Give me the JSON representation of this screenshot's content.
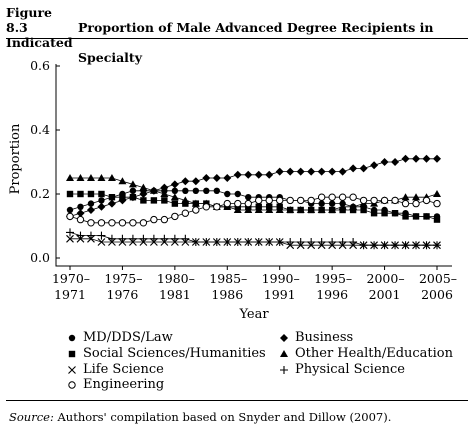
{
  "figure_label": "Figure 8.3",
  "title_line1": "Proportion of Male Advanced Degree Recipients in Indicated",
  "title_line2": "Specialty",
  "source_label": "Source:",
  "source_text": "Authors' compilation based on Snyder and Dillow (2007).",
  "chart_data": {
    "type": "line",
    "xlabel": "Year",
    "ylabel": "Proportion",
    "ylim": [
      0,
      0.6
    ],
    "yticks": [
      "0.0",
      "0.2",
      "0.4",
      "0.6"
    ],
    "xtick_labels": [
      [
        "1970–",
        "1971"
      ],
      [
        "1975–",
        "1976"
      ],
      [
        "1980–",
        "1981"
      ],
      [
        "1985–",
        "1986"
      ],
      [
        "1990–",
        "1991"
      ],
      [
        "1995–",
        "1996"
      ],
      [
        "2000–",
        "2001"
      ],
      [
        "2005–",
        "2006"
      ]
    ],
    "categories": [
      "1970–1971",
      "1971–1972",
      "1972–1973",
      "1973–1974",
      "1974–1975",
      "1975–1976",
      "1976–1977",
      "1977–1978",
      "1978–1979",
      "1979–1980",
      "1980–1981",
      "1981–1982",
      "1982–1983",
      "1983–1984",
      "1984–1985",
      "1985–1986",
      "1986–1987",
      "1987–1988",
      "1988–1989",
      "1989–1990",
      "1990–1991",
      "1991–1992",
      "1992–1993",
      "1993–1994",
      "1994–1995",
      "1995–1996",
      "1996–1997",
      "1997–1998",
      "1998–1999",
      "1999–2000",
      "2000–2001",
      "2001–2002",
      "2002–2003",
      "2003–2004",
      "2004–2005",
      "2005–2006"
    ],
    "series": [
      {
        "name": "MD/DDS/Law",
        "marker": "circle-filled",
        "values": [
          0.15,
          0.16,
          0.17,
          0.18,
          0.19,
          0.2,
          0.21,
          0.21,
          0.21,
          0.21,
          0.21,
          0.21,
          0.21,
          0.21,
          0.21,
          0.2,
          0.2,
          0.19,
          0.19,
          0.19,
          0.19,
          0.18,
          0.18,
          0.17,
          0.17,
          0.17,
          0.17,
          0.16,
          0.16,
          0.15,
          0.15,
          0.14,
          0.14,
          0.13,
          0.13,
          0.13
        ]
      },
      {
        "name": "Business",
        "marker": "diamond-filled",
        "values": [
          0.13,
          0.14,
          0.15,
          0.16,
          0.17,
          0.18,
          0.19,
          0.2,
          0.21,
          0.22,
          0.23,
          0.24,
          0.24,
          0.25,
          0.25,
          0.25,
          0.26,
          0.26,
          0.26,
          0.26,
          0.27,
          0.27,
          0.27,
          0.27,
          0.27,
          0.27,
          0.27,
          0.28,
          0.28,
          0.29,
          0.3,
          0.3,
          0.31,
          0.31,
          0.31,
          0.31
        ]
      },
      {
        "name": "Social Sciences/Humanities",
        "marker": "square-filled",
        "values": [
          0.2,
          0.2,
          0.2,
          0.2,
          0.19,
          0.19,
          0.19,
          0.18,
          0.18,
          0.18,
          0.17,
          0.17,
          0.17,
          0.17,
          0.16,
          0.16,
          0.16,
          0.16,
          0.16,
          0.16,
          0.16,
          0.15,
          0.15,
          0.15,
          0.15,
          0.15,
          0.15,
          0.15,
          0.15,
          0.14,
          0.14,
          0.14,
          0.13,
          0.13,
          0.13,
          0.12
        ]
      },
      {
        "name": "Other Health/Education",
        "marker": "triangle-filled",
        "values": [
          0.25,
          0.25,
          0.25,
          0.25,
          0.25,
          0.24,
          0.23,
          0.22,
          0.21,
          0.2,
          0.19,
          0.18,
          0.17,
          0.17,
          0.16,
          0.16,
          0.15,
          0.15,
          0.15,
          0.15,
          0.15,
          0.15,
          0.15,
          0.15,
          0.15,
          0.15,
          0.16,
          0.16,
          0.17,
          0.17,
          0.18,
          0.18,
          0.19,
          0.19,
          0.19,
          0.2
        ]
      },
      {
        "name": "Life Science",
        "marker": "x",
        "values": [
          0.06,
          0.06,
          0.06,
          0.05,
          0.05,
          0.05,
          0.05,
          0.05,
          0.05,
          0.05,
          0.05,
          0.05,
          0.05,
          0.05,
          0.05,
          0.05,
          0.05,
          0.05,
          0.05,
          0.05,
          0.05,
          0.04,
          0.04,
          0.04,
          0.04,
          0.04,
          0.04,
          0.04,
          0.04,
          0.04,
          0.04,
          0.04,
          0.04,
          0.04,
          0.04,
          0.04
        ]
      },
      {
        "name": "Physical Science",
        "marker": "plus",
        "values": [
          0.08,
          0.07,
          0.07,
          0.07,
          0.06,
          0.06,
          0.06,
          0.06,
          0.06,
          0.06,
          0.06,
          0.06,
          0.05,
          0.05,
          0.05,
          0.05,
          0.05,
          0.05,
          0.05,
          0.05,
          0.05,
          0.05,
          0.05,
          0.05,
          0.05,
          0.05,
          0.05,
          0.05,
          0.04,
          0.04,
          0.04,
          0.04,
          0.04,
          0.04,
          0.04,
          0.04
        ]
      },
      {
        "name": "Engineering",
        "marker": "circle-open",
        "values": [
          0.13,
          0.12,
          0.11,
          0.11,
          0.11,
          0.11,
          0.11,
          0.11,
          0.12,
          0.12,
          0.13,
          0.14,
          0.15,
          0.16,
          0.16,
          0.17,
          0.17,
          0.17,
          0.18,
          0.18,
          0.18,
          0.18,
          0.18,
          0.18,
          0.19,
          0.19,
          0.19,
          0.19,
          0.18,
          0.18,
          0.18,
          0.18,
          0.17,
          0.17,
          0.18,
          0.17
        ]
      }
    ],
    "legend_placement": "bottom",
    "grid": false
  }
}
